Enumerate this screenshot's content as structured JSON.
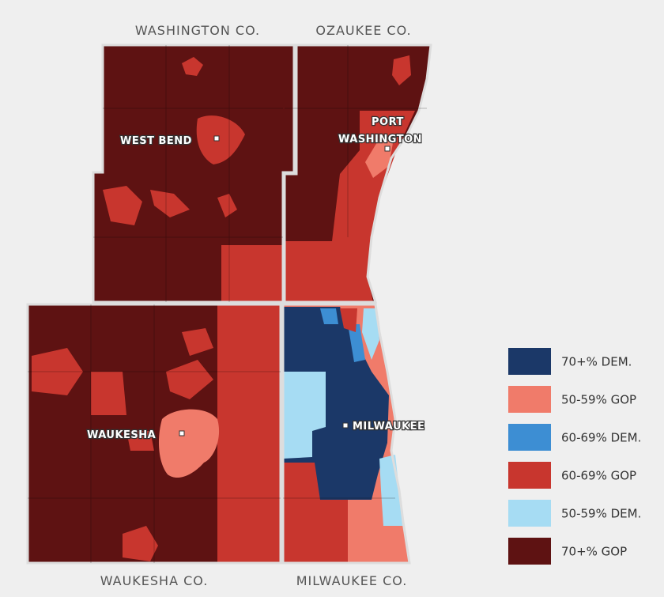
{
  "counties": [
    {
      "label": "WASHINGTON CO."
    },
    {
      "label": "OZAUKEE CO."
    },
    {
      "label": "WAUKESHA CO."
    },
    {
      "label": "MILWAUKEE CO."
    }
  ],
  "cities": [
    {
      "lines": [
        "WEST BEND"
      ]
    },
    {
      "lines": [
        "PORT",
        "WASHINGTON"
      ]
    },
    {
      "lines": [
        "WAUKESHA"
      ]
    },
    {
      "lines": [
        "MILWAUKEE"
      ]
    }
  ],
  "legend": [
    {
      "label": "70+% DEM.",
      "color": "#1b3868"
    },
    {
      "label": "50-59% GOP",
      "color": "#f07b6a"
    },
    {
      "label": "60-69% DEM.",
      "color": "#3d8ed3"
    },
    {
      "label": "60-69% GOP",
      "color": "#c8362e"
    },
    {
      "label": "50-59% DEM.",
      "color": "#a6dcf3"
    },
    {
      "label": "70+% GOP",
      "color": "#5e1212"
    }
  ]
}
